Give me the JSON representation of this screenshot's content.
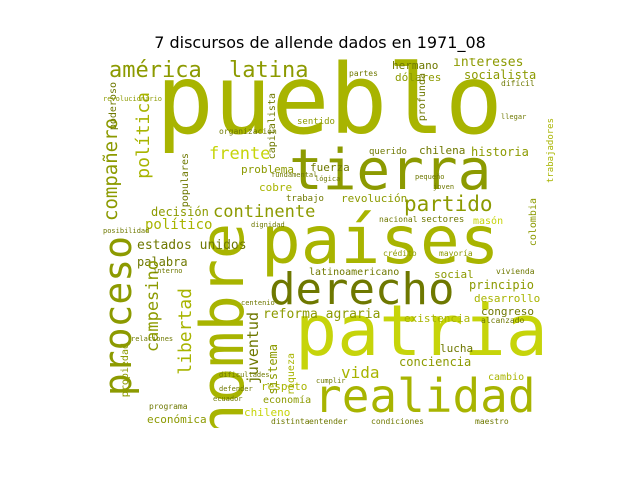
{
  "title": "7 discursos de allende dados en 1971_08",
  "colors": {
    "c1": "#a8b400",
    "c2": "#8c9a00",
    "c3": "#c6d40a",
    "c4": "#6e7800",
    "c5": "#b9c200"
  },
  "words": {
    "pueblo": "pueblo",
    "paises": "países",
    "patria": "patria",
    "hombre": "hombre",
    "tierra": "tierra",
    "derecho": "derecho",
    "realidad": "realidad",
    "proceso": "proceso",
    "america": "américa",
    "latina": "latina",
    "partido": "partido",
    "continente": "continente",
    "frente": "frente",
    "companero": "compañero",
    "politica": "política",
    "campesino": "campesino",
    "libertad": "libertad",
    "juventud": "juventud",
    "vida": "vida",
    "historia": "historia",
    "intereses": "intereses",
    "socialista": "socialista",
    "hermano": "hermano",
    "dolares": "dólares",
    "poderoso": "poderoso",
    "chilena": "chilena",
    "principio": "principio",
    "desarrollo": "desarrollo",
    "congreso": "congreso",
    "reforma_agraria": "reforma agraria",
    "latinoamericano": "latinoamericano",
    "social": "social",
    "estados_unidos": "estados unidos",
    "decision": "decisión",
    "politico": "político",
    "palabra": "palabra",
    "revolucion": "revolución",
    "fuerza": "fuerza",
    "problema": "problema",
    "cobre": "cobre",
    "trabajo": "trabajo",
    "sistema": "sistema",
    "riqueza": "riqueza",
    "respeto": "respeto",
    "economia": "economía",
    "chileno": "chileno",
    "economica": "económica",
    "lucha": "lucha",
    "existencia": "existencia",
    "conciencia": "conciencia",
    "cambio": "cambio",
    "colombia": "colombia",
    "trabajadores": "trabajadores",
    "populares": "populares",
    "sentido": "sentido",
    "querido": "querido",
    "profunda": "profunda",
    "capitalista": "capitalista",
    "organizacion": "organización",
    "partes": "partes",
    "propiedad": "propiedad",
    "programa": "programa",
    "entender": "entender",
    "distinta": "distinta",
    "condiciones": "condiciones",
    "maestro": "maestro",
    "ecuador": "ecuador",
    "nacional": "nacional",
    "sectores": "sectores",
    "mason": "masón",
    "mayoria": "mayoría",
    "credito": "crédito",
    "vivienda": "vivienda",
    "alcanzado": "alcanzado",
    "centenio": "centenio",
    "interno": "interno",
    "dignidad": "dignidad",
    "posibilidad": "posibilidad",
    "revolucionario": "revolucionario",
    "fundamental": "fundamental",
    "logica": "lógica",
    "joven": "joven",
    "dificil": "difícil",
    "llegar": "llegar",
    "pequeno": "pequeño",
    "dificultades": "dificultades",
    "relaciones": "relaciones",
    "defender": "defender",
    "cumplir": "cumplir"
  }
}
